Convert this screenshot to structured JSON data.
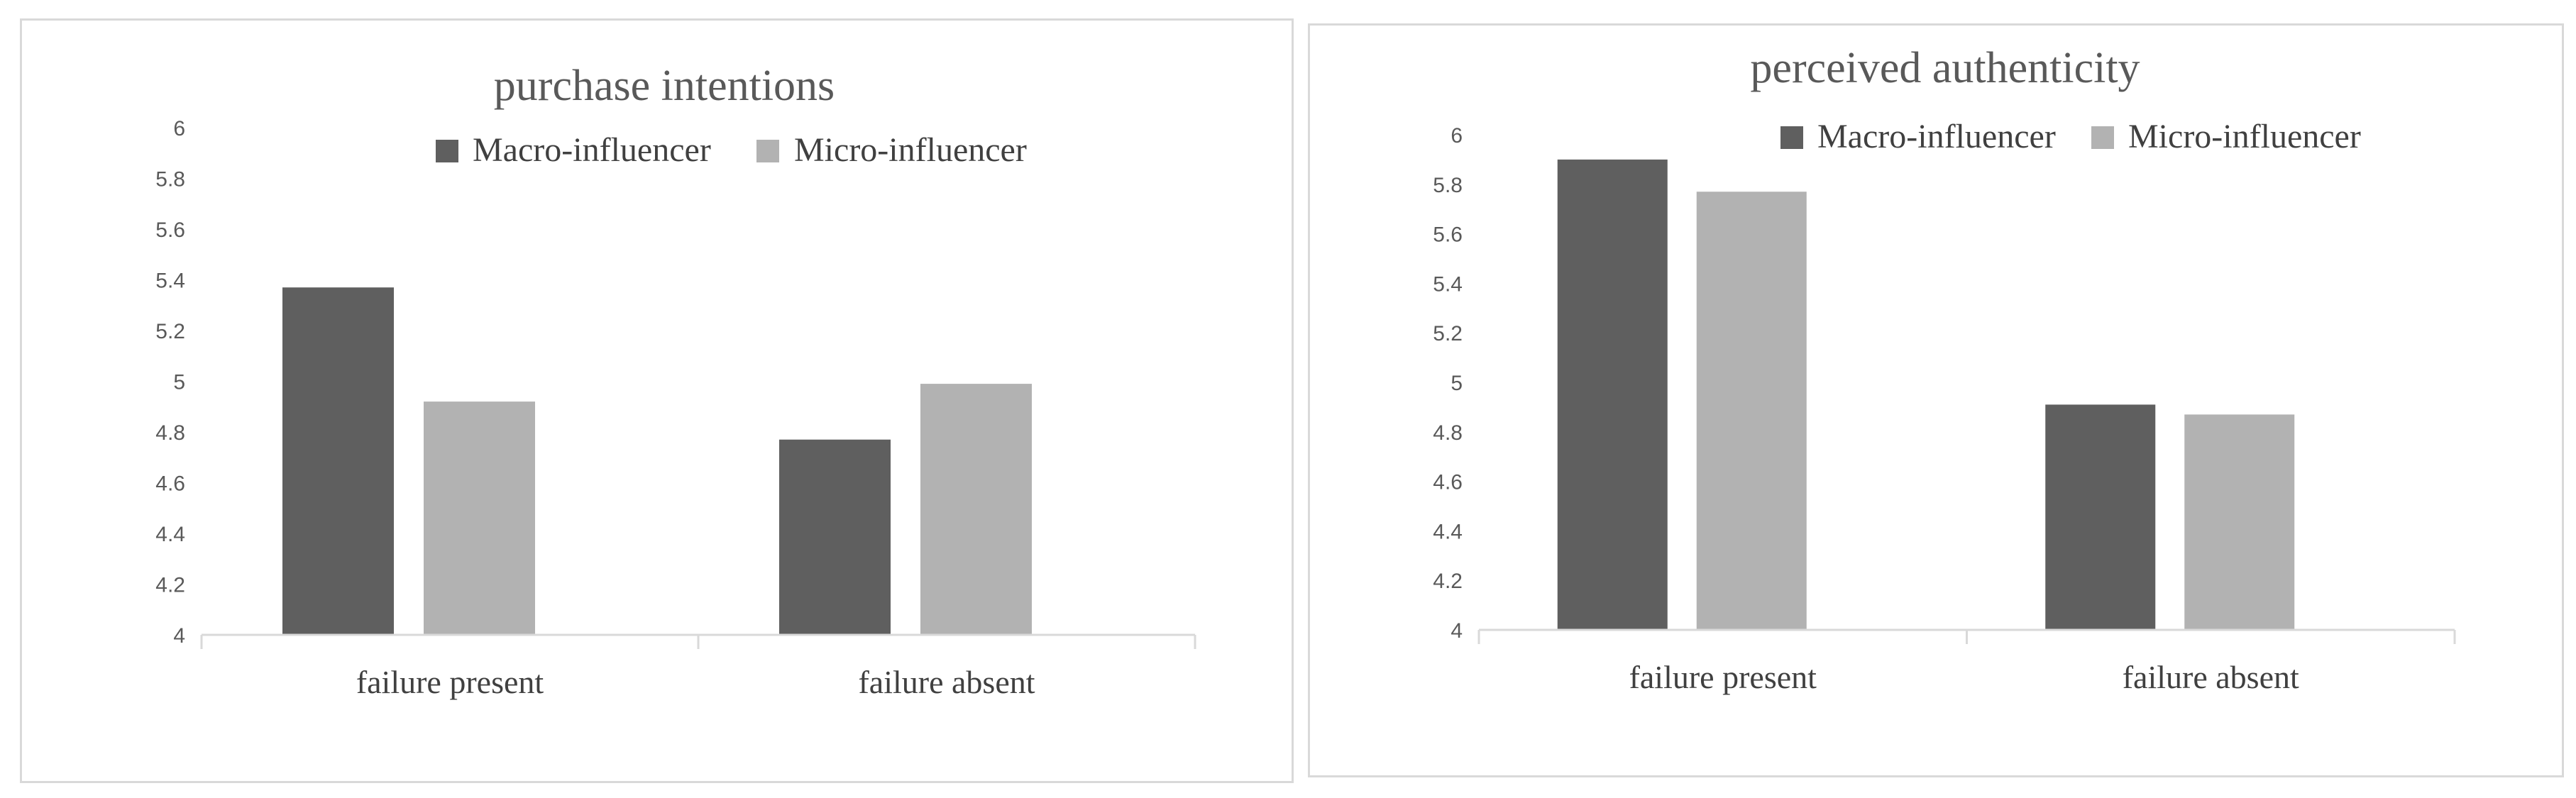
{
  "chart_data": [
    {
      "type": "bar",
      "title": "purchase intentions",
      "categories": [
        "failure present",
        "failure absent"
      ],
      "series": [
        {
          "name": "Macro-influencer",
          "values": [
            5.37,
            4.77
          ],
          "color": "#5f5f5f"
        },
        {
          "name": "Micro-influencer",
          "values": [
            4.92,
            4.99
          ],
          "color": "#b2b2b2"
        }
      ],
      "ylim": [
        4,
        6
      ],
      "yticks": [
        "4",
        "4.2",
        "4.4",
        "4.6",
        "4.8",
        "5",
        "5.2",
        "5.4",
        "5.6",
        "5.8",
        "6"
      ],
      "legend_position": "top",
      "grid": false
    },
    {
      "type": "bar",
      "title": "perceived authenticity",
      "categories": [
        "failure present",
        "failure absent"
      ],
      "series": [
        {
          "name": "Macro-influencer",
          "values": [
            5.9,
            4.91
          ],
          "color": "#5f5f5f"
        },
        {
          "name": "Micro-influencer",
          "values": [
            5.77,
            4.87
          ],
          "color": "#b2b2b2"
        }
      ],
      "ylim": [
        4,
        6
      ],
      "yticks": [
        "4",
        "4.2",
        "4.4",
        "4.6",
        "4.8",
        "5",
        "5.2",
        "5.4",
        "5.6",
        "5.8",
        "6"
      ],
      "legend_position": "top",
      "grid": false
    }
  ]
}
